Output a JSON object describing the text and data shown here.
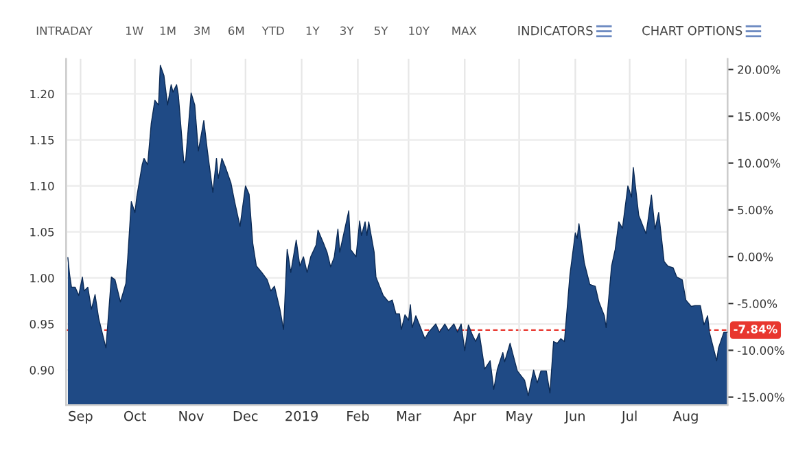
{
  "chart_data": {
    "type": "area",
    "annotations": [
      "INTRADAY",
      "1W",
      "1M",
      "3M",
      "6M",
      "YTD",
      "1Y",
      "3Y",
      "5Y",
      "10Y",
      "MAX",
      "INDICATORS",
      "CHART OPTIONS"
    ],
    "x": [
      "2018-08-25",
      "2018-08-26",
      "2018-08-27",
      "2018-08-29",
      "2018-08-31",
      "2018-09-02",
      "2018-09-03",
      "2018-09-05",
      "2018-09-07",
      "2018-09-09",
      "2018-09-11",
      "2018-09-15",
      "2018-09-18",
      "2018-09-20",
      "2018-09-23",
      "2018-09-26",
      "2018-09-27",
      "2018-09-29",
      "2018-10-01",
      "2018-10-02",
      "2018-10-05",
      "2018-10-06",
      "2018-10-08",
      "2018-10-10",
      "2018-10-12",
      "2018-10-14",
      "2018-10-15",
      "2018-10-17",
      "2018-10-19",
      "2018-10-21",
      "2018-10-22",
      "2018-10-24",
      "2018-10-25",
      "2018-10-28",
      "2018-10-29",
      "2018-11-01",
      "2018-11-03",
      "2018-11-05",
      "2018-11-08",
      "2018-11-10",
      "2018-11-13",
      "2018-11-15",
      "2018-11-16",
      "2018-11-18",
      "2018-11-20",
      "2018-11-23",
      "2018-11-25",
      "2018-11-28",
      "2018-12-01",
      "2018-12-03",
      "2018-12-05",
      "2018-12-07",
      "2018-12-10",
      "2018-12-13",
      "2018-12-15",
      "2018-12-17",
      "2018-12-20",
      "2018-12-22",
      "2018-12-24",
      "2018-12-26",
      "2018-12-29",
      "2018-12-31",
      "2019-01-02",
      "2019-01-04",
      "2019-01-06",
      "2019-01-09",
      "2019-01-10",
      "2019-01-13",
      "2019-01-15",
      "2019-01-17",
      "2019-01-19",
      "2019-01-21",
      "2019-01-22",
      "2019-01-27",
      "2019-01-28",
      "2019-01-31",
      "2019-02-02",
      "2019-02-03",
      "2019-02-05",
      "2019-02-06",
      "2019-02-07",
      "2019-02-10",
      "2019-02-11",
      "2019-02-15",
      "2019-02-18",
      "2019-02-20",
      "2019-02-22",
      "2019-02-24",
      "2019-02-25",
      "2019-02-27",
      "2019-03-01",
      "2019-03-02",
      "2019-03-03",
      "2019-03-05",
      "2019-03-07",
      "2019-03-10",
      "2019-03-12",
      "2019-03-16",
      "2019-03-18",
      "2019-03-21",
      "2019-03-23",
      "2019-03-26",
      "2019-03-28",
      "2019-03-30",
      "2019-04-01",
      "2019-04-03",
      "2019-04-05",
      "2019-04-07",
      "2019-04-09",
      "2019-04-12",
      "2019-04-15",
      "2019-04-17",
      "2019-04-19",
      "2019-04-22",
      "2019-04-23",
      "2019-04-26",
      "2019-04-28",
      "2019-04-30",
      "2019-05-04",
      "2019-05-06",
      "2019-05-09",
      "2019-05-11",
      "2019-05-13",
      "2019-05-16",
      "2019-05-18",
      "2019-05-20",
      "2019-05-22",
      "2019-05-24",
      "2019-05-26",
      "2019-05-29",
      "2019-06-01",
      "2019-06-02",
      "2019-06-03",
      "2019-06-06",
      "2019-06-09",
      "2019-06-12",
      "2019-06-14",
      "2019-06-17",
      "2019-06-18",
      "2019-06-21",
      "2019-06-23",
      "2019-06-25",
      "2019-06-27",
      "2019-06-30",
      "2019-07-02",
      "2019-07-03",
      "2019-07-06",
      "2019-07-08",
      "2019-07-10",
      "2019-07-11",
      "2019-07-13",
      "2019-07-15",
      "2019-07-17",
      "2019-07-20",
      "2019-07-22",
      "2019-07-25",
      "2019-07-27",
      "2019-07-30",
      "2019-08-01",
      "2019-08-04",
      "2019-08-06",
      "2019-08-09",
      "2019-08-11",
      "2019-08-13",
      "2019-08-14",
      "2019-08-18",
      "2019-08-19",
      "2019-08-22",
      "2019-08-24"
    ],
    "series": [
      {
        "color": "#1f4a85",
        "values": [
          1.022,
          1.003,
          0.99,
          0.99,
          0.981,
          1.001,
          0.986,
          0.99,
          0.966,
          0.982,
          0.956,
          0.924,
          1.001,
          0.998,
          0.974,
          0.994,
          1.021,
          1.083,
          1.071,
          1.088,
          1.123,
          1.13,
          1.123,
          1.168,
          1.193,
          1.188,
          1.231,
          1.22,
          1.188,
          1.21,
          1.202,
          1.21,
          1.198,
          1.125,
          1.128,
          1.201,
          1.188,
          1.138,
          1.171,
          1.138,
          1.093,
          1.13,
          1.108,
          1.13,
          1.12,
          1.103,
          1.083,
          1.056,
          1.1,
          1.091,
          1.038,
          1.013,
          1.006,
          0.998,
          0.986,
          0.991,
          0.966,
          0.944,
          1.031,
          1.006,
          1.041,
          1.013,
          1.023,
          1.006,
          1.023,
          1.036,
          1.052,
          1.038,
          1.028,
          1.012,
          1.023,
          1.053,
          1.028,
          1.073,
          1.031,
          1.023,
          1.062,
          1.046,
          1.061,
          1.046,
          1.061,
          1.028,
          1.001,
          0.981,
          0.974,
          0.976,
          0.961,
          0.961,
          0.944,
          0.96,
          0.954,
          0.971,
          0.946,
          0.959,
          0.949,
          0.934,
          0.941,
          0.95,
          0.941,
          0.95,
          0.943,
          0.95,
          0.941,
          0.95,
          0.921,
          0.949,
          0.939,
          0.931,
          0.94,
          0.901,
          0.91,
          0.879,
          0.901,
          0.919,
          0.909,
          0.929,
          0.914,
          0.899,
          0.889,
          0.872,
          0.9,
          0.886,
          0.899,
          0.899,
          0.875,
          0.931,
          0.929,
          0.934,
          0.931,
          1.003,
          1.049,
          1.043,
          1.059,
          1.016,
          0.993,
          0.991,
          0.974,
          0.959,
          0.946,
          1.013,
          1.031,
          1.061,
          1.054,
          1.1,
          1.088,
          1.12,
          1.068,
          1.058,
          1.048,
          1.061,
          1.09,
          1.053,
          1.071,
          1.018,
          1.013,
          1.011,
          1.001,
          0.998,
          0.976,
          0.969,
          0.97,
          0.97,
          0.949,
          0.959,
          0.941,
          0.91,
          0.924,
          0.941,
          0.941
        ]
      }
    ],
    "xlim": [
      "2018-08-24",
      "2019-08-24"
    ],
    "xticks": [
      {
        "value": "2018-09-01",
        "label": "Sep"
      },
      {
        "value": "2018-10-01",
        "label": "Oct"
      },
      {
        "value": "2018-11-01",
        "label": "Nov"
      },
      {
        "value": "2018-12-01",
        "label": "Dec"
      },
      {
        "value": "2019-01-01",
        "label": "2019"
      },
      {
        "value": "2019-02-01",
        "label": "Feb"
      },
      {
        "value": "2019-03-01",
        "label": "Mar"
      },
      {
        "value": "2019-04-01",
        "label": "Apr"
      },
      {
        "value": "2019-05-01",
        "label": "May"
      },
      {
        "value": "2019-06-01",
        "label": "Jun"
      },
      {
        "value": "2019-07-01",
        "label": "Jul"
      },
      {
        "value": "2019-08-01",
        "label": "Aug"
      }
    ],
    "ylim": [
      0.862,
      1.238
    ],
    "yticks": [
      {
        "value": 0.9,
        "label": "0.90"
      },
      {
        "value": 0.95,
        "label": "0.95"
      },
      {
        "value": 1.0,
        "label": "1.00"
      },
      {
        "value": 1.05,
        "label": "1.05"
      },
      {
        "value": 1.1,
        "label": "1.10"
      },
      {
        "value": 1.15,
        "label": "1.15"
      },
      {
        "value": 1.2,
        "label": "1.20"
      }
    ],
    "y2lim": [
      -15.84,
      21.13
    ],
    "y2ticks": [
      {
        "value": -15,
        "label": "-15.00%"
      },
      {
        "value": -10,
        "label": "-10.00%"
      },
      {
        "value": -5,
        "label": "-5.00%"
      },
      {
        "value": 0,
        "label": "0.00%"
      },
      {
        "value": 5,
        "label": "5.00%"
      },
      {
        "value": 10,
        "label": "10.00%"
      },
      {
        "value": 15,
        "label": "15.00%"
      },
      {
        "value": 20,
        "label": "20.00%"
      }
    ],
    "ref_lines": [
      {
        "axis": "y2",
        "value": -7.84,
        "label": "-7.84%",
        "color": "#e8372f",
        "line_style": "dashed"
      }
    ],
    "grid": true
  }
}
